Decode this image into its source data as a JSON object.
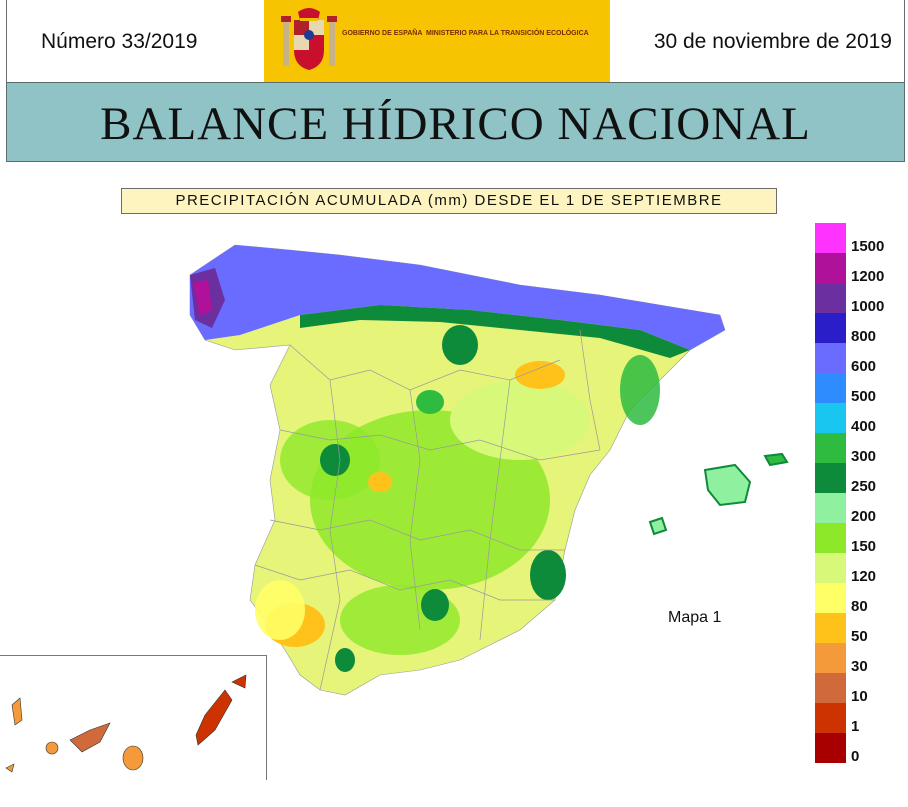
{
  "header": {
    "issue": "Número 33/2019",
    "date": "30 de noviembre de 2019",
    "gov_label": "GOBIERNO DE ESPAÑA",
    "ministry_label": "MINISTERIO PARA LA TRANSICIÓN ECOLÓGICA"
  },
  "title": "BALANCE HÍDRICO NACIONAL",
  "subtitle": "PRECIPITACIÓN ACUMULADA (mm) DESDE EL 1 DE SEPTIEMBRE",
  "map_label": "Mapa 1",
  "legend": [
    {
      "label": "1500",
      "color": "#ff33ff"
    },
    {
      "label": "1200",
      "color": "#b0119a"
    },
    {
      "label": "1000",
      "color": "#6b2fa0"
    },
    {
      "label": "800",
      "color": "#2a1ec8"
    },
    {
      "label": "600",
      "color": "#6a6cff"
    },
    {
      "label": "500",
      "color": "#2f8cff"
    },
    {
      "label": "400",
      "color": "#18c6f0"
    },
    {
      "label": "300",
      "color": "#2ebb3f"
    },
    {
      "label": "250",
      "color": "#0d8a3a"
    },
    {
      "label": "200",
      "color": "#8ff0a0"
    },
    {
      "label": "150",
      "color": "#8ee82a"
    },
    {
      "label": "120",
      "color": "#d8f87a"
    },
    {
      "label": "80",
      "color": "#ffff66"
    },
    {
      "label": "50",
      "color": "#ffc21a"
    },
    {
      "label": "30",
      "color": "#f59a3a"
    },
    {
      "label": "10",
      "color": "#d06a3a"
    },
    {
      "label": "1",
      "color": "#cc3300"
    },
    {
      "label": "0",
      "color": "#a80000"
    }
  ]
}
